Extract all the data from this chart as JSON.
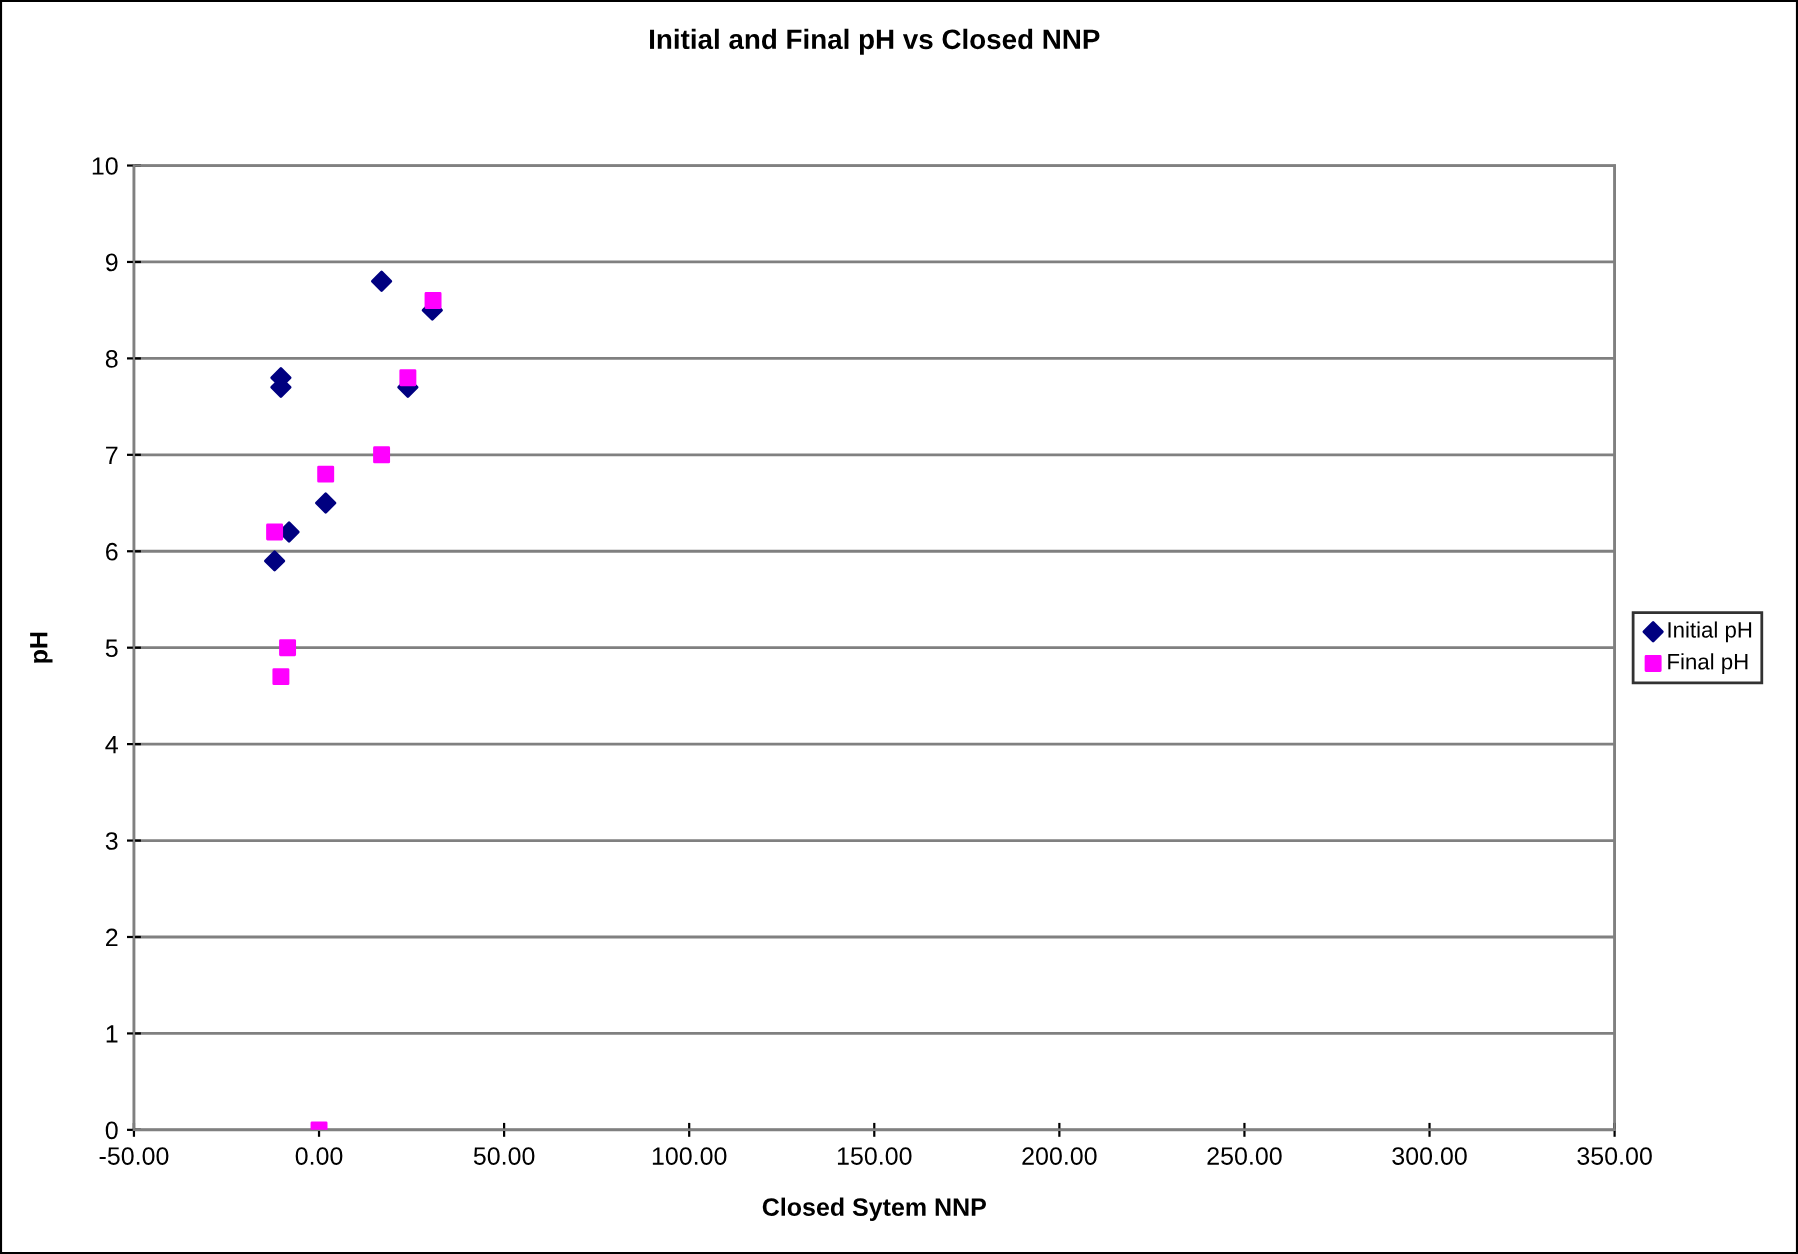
{
  "chart_data": {
    "type": "scatter",
    "title": "Initial and Final pH vs Closed NNP",
    "xlabel": "Closed Sytem NNP",
    "ylabel": "pH",
    "xlim": [
      -50,
      350
    ],
    "xticks": [
      {
        "value": -50,
        "label": "-50.00"
      },
      {
        "value": 0,
        "label": "0.00"
      },
      {
        "value": 50,
        "label": "50.00"
      },
      {
        "value": 100,
        "label": "100.00"
      },
      {
        "value": 150,
        "label": "150.00"
      },
      {
        "value": 200,
        "label": "200.00"
      },
      {
        "value": 250,
        "label": "250.00"
      },
      {
        "value": 300,
        "label": "300.00"
      },
      {
        "value": 350,
        "label": "350.00"
      }
    ],
    "ylim": [
      0,
      10
    ],
    "yticks": [
      0,
      1,
      2,
      3,
      4,
      5,
      6,
      7,
      8,
      9,
      10
    ],
    "grid": "y",
    "legend": "right",
    "series": [
      {
        "name": "Initial pH",
        "color": "#000080",
        "marker": "diamond",
        "x": [
          16.9,
          30.6,
          -10.3,
          -10.3,
          24,
          1.8,
          -8.1,
          -12
        ],
        "values": [
          8.8,
          8.5,
          7.8,
          7.7,
          7.7,
          6.5,
          6.2,
          5.9
        ]
      },
      {
        "name": "Final pH",
        "color": "#ff00ff",
        "marker": "square",
        "x": [
          30.8,
          24,
          16.9,
          1.8,
          -12,
          -8.5,
          -10.3,
          0
        ],
        "values": [
          8.6,
          7.8,
          7.0,
          6.8,
          6.2,
          5.0,
          4.7,
          0
        ]
      }
    ]
  }
}
